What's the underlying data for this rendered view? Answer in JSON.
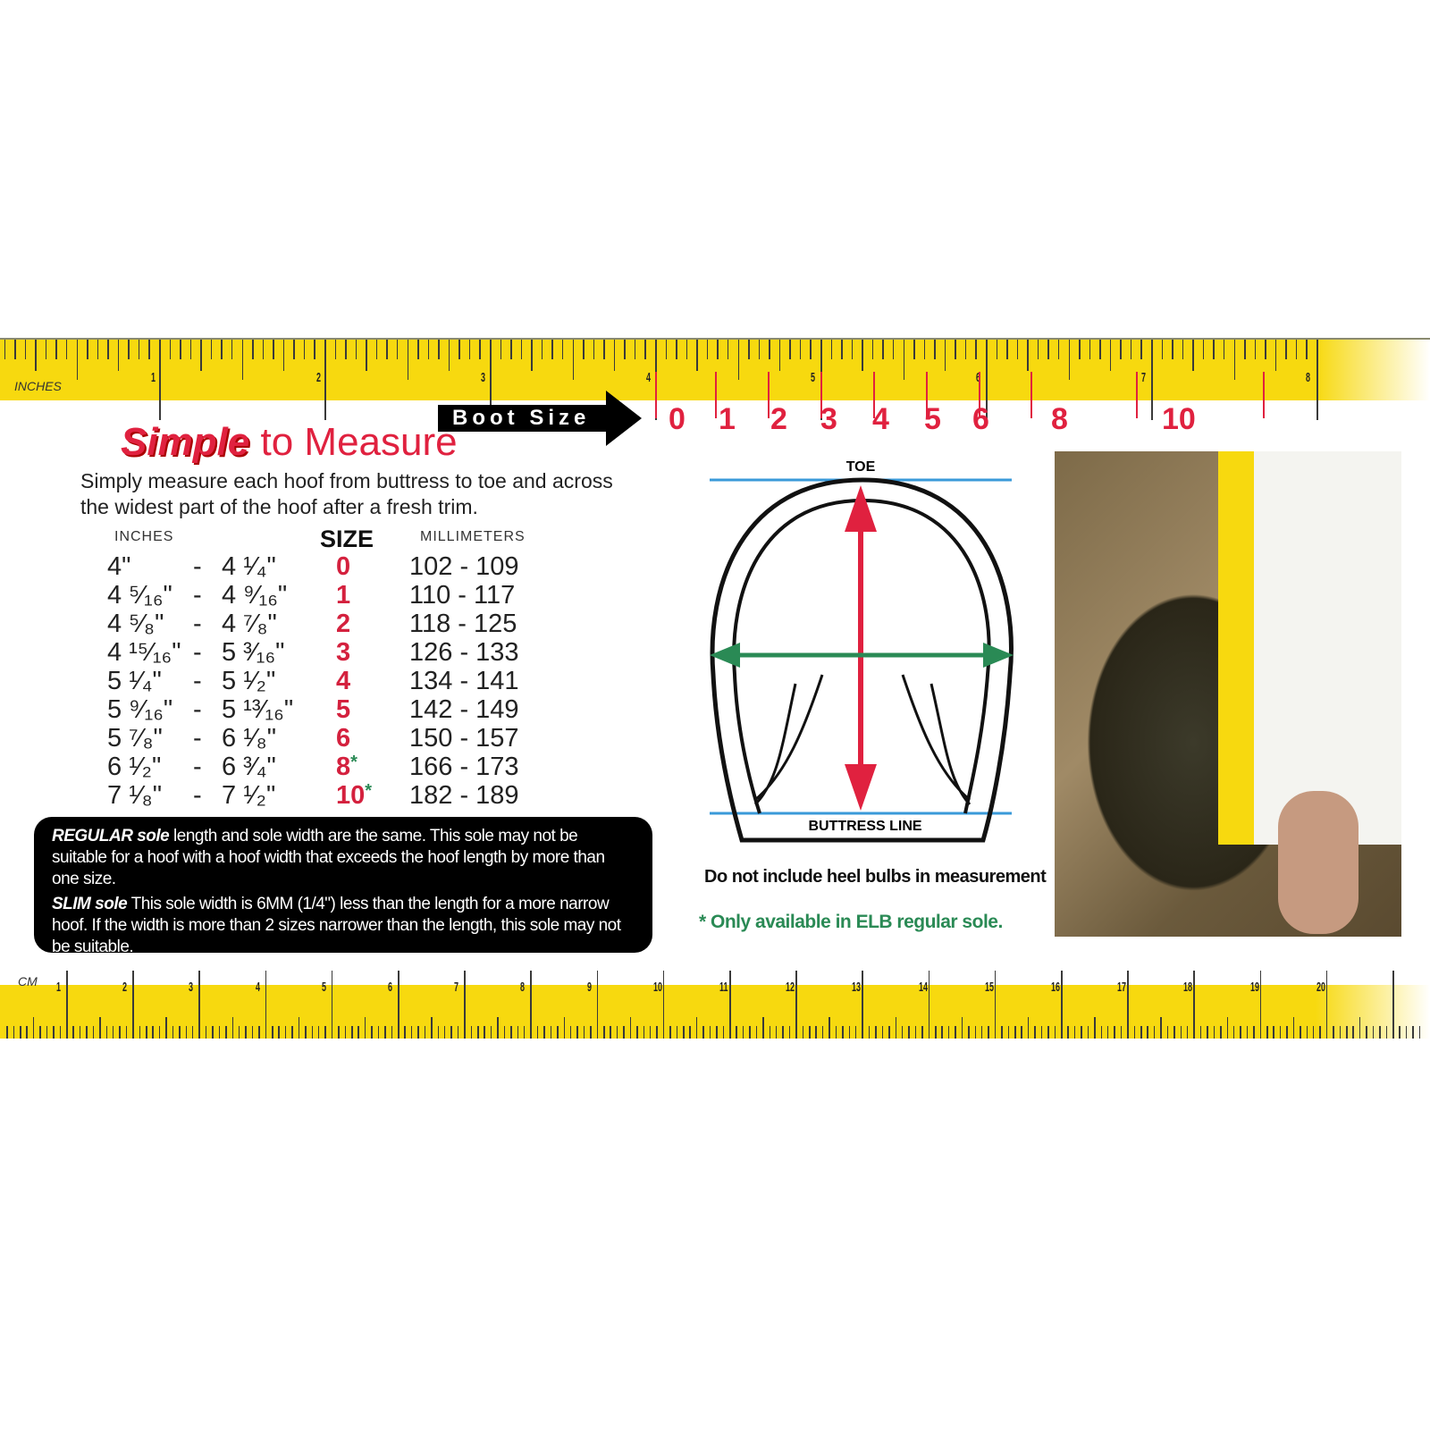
{
  "ruler_top": {
    "unit_label": "INCHES",
    "labels": [
      "1",
      "2",
      "3",
      "4",
      "5",
      "6",
      "7",
      "8"
    ]
  },
  "ruler_bottom": {
    "unit_label": "CM",
    "labels": [
      "1",
      "2",
      "3",
      "4",
      "5",
      "6",
      "7",
      "8",
      "9",
      "10",
      "11",
      "12",
      "13",
      "14",
      "15",
      "16",
      "17",
      "18",
      "19",
      "20"
    ]
  },
  "boot_size": {
    "label": "Boot Size",
    "sizes": [
      "0",
      "1",
      "2",
      "3",
      "4",
      "5",
      "6",
      "8",
      "10"
    ]
  },
  "title": {
    "simple": "Simple",
    "rest": "to Measure"
  },
  "intro": "Simply measure each hoof from buttress to toe and across the widest part of the hoof after a fresh trim.",
  "table": {
    "headers": {
      "inches": "INCHES",
      "size": "SIZE",
      "mm": "MILLIMETERS"
    },
    "rows": [
      {
        "from": "4\"",
        "to": "4 ¹⁄₄\"",
        "size": "0",
        "star": "",
        "mm": "102 - 109"
      },
      {
        "from": "4 ⁵⁄₁₆\"",
        "to": "4 ⁹⁄₁₆\"",
        "size": "1",
        "star": "",
        "mm": "110 - 117"
      },
      {
        "from": "4 ⁵⁄₈\"",
        "to": "4 ⁷⁄₈\"",
        "size": "2",
        "star": "",
        "mm": "118 - 125"
      },
      {
        "from": "4 ¹⁵⁄₁₆\"",
        "to": "5 ³⁄₁₆\"",
        "size": "3",
        "star": "",
        "mm": "126 - 133"
      },
      {
        "from": "5 ¹⁄₄\"",
        "to": "5 ¹⁄₂\"",
        "size": "4",
        "star": "",
        "mm": "134 - 141"
      },
      {
        "from": "5 ⁹⁄₁₆\"",
        "to": "5 ¹³⁄₁₆\"",
        "size": "5",
        "star": "",
        "mm": "142 - 149"
      },
      {
        "from": "5 ⁷⁄₈\"",
        "to": "6 ¹⁄₈\"",
        "size": "6",
        "star": "",
        "mm": "150 - 157"
      },
      {
        "from": "6 ¹⁄₂\"",
        "to": "6 ³⁄₄\"",
        "size": "8",
        "star": "*",
        "mm": "166 - 173"
      },
      {
        "from": "7 ¹⁄₈\"",
        "to": "7 ¹⁄₂\"",
        "size": "10",
        "star": "*",
        "mm": "182 - 189"
      }
    ],
    "dash": "-"
  },
  "notes": {
    "regular_label": "REGULAR sole",
    "regular_text": "length and sole width are the same. This sole may not be suitable for a hoof with a hoof width that exceeds the hoof length by more than one size.",
    "slim_label": "SLIM sole",
    "slim_text": "This sole width is 6MM (1/4\") less than the length for a more narrow hoof. If the width is more than 2 sizes narrower than the length, this sole may not be suitable."
  },
  "diagram": {
    "toe": "TOE",
    "buttress": "BUTTRESS LINE"
  },
  "caption": "Do not include heel bulbs in measurement",
  "availability": "* Only available in ELB regular sole.",
  "colors": {
    "ruler": "#f7d90f",
    "accent_red": "#e0213f",
    "green": "#2a8a55",
    "blue_line": "#3a9ad9"
  }
}
